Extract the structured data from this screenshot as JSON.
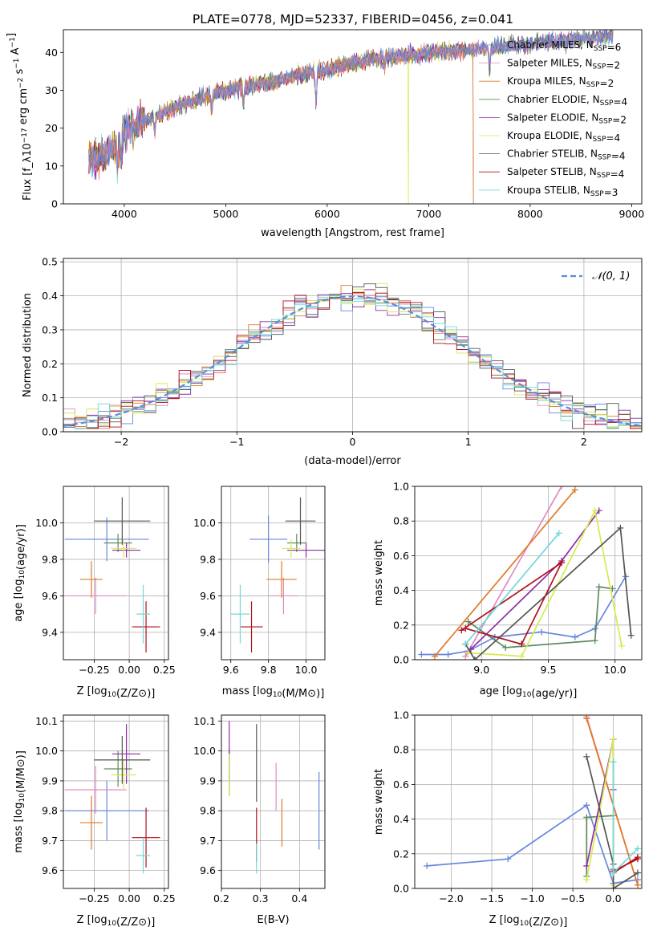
{
  "title": "PLATE=0778, MJD=52337, FIBERID=0456, z=0.041",
  "colors": {
    "Chabrier MILES": "#6688dd",
    "Salpeter MILES": "#e08ac0",
    "Kroupa MILES": "#e07a25",
    "Chabrier ELODIE": "#5e8a5e",
    "Salpeter ELODIE": "#8e2fa5",
    "Kroupa ELODIE": "#d6ea50",
    "Chabrier STELIB": "#555555",
    "Salpeter STELIB": "#b0101a",
    "Kroupa STELIB": "#70d8d8"
  },
  "chart_data": [
    {
      "id": "spectrum",
      "type": "line",
      "xlabel": "wavelength [Angstrom, rest frame]",
      "ylabel": "Flux [f_λ10^-17 erg cm^-2 s^-1 A^-1]",
      "xlim": [
        3400,
        9100
      ],
      "ylim": [
        0,
        46
      ],
      "xticks": [
        4000,
        5000,
        6000,
        7000,
        8000,
        9000
      ],
      "yticks": [
        0,
        10,
        20,
        30,
        40
      ],
      "grid": false,
      "legend_position": "top-right",
      "continuum": {
        "x": [
          3650,
          3700,
          3800,
          3900,
          4000,
          4100,
          4300,
          4500,
          4700,
          4900,
          5100,
          5300,
          5500,
          5700,
          5900,
          6100,
          6300,
          6500,
          6700,
          6900,
          7100,
          7300,
          7500,
          7700,
          7900,
          8100,
          8300,
          8500,
          8700,
          8800
        ],
        "y": [
          12,
          12,
          13,
          15,
          19,
          21,
          23,
          25.5,
          27.5,
          29,
          30.5,
          31.5,
          32.5,
          34,
          35,
          36,
          37.5,
          38.5,
          39,
          39.5,
          40,
          40.5,
          41,
          41.5,
          42,
          42.5,
          43,
          43.5,
          44,
          44.5
        ]
      },
      "series": [
        {
          "name": "Chabrier MILES, N_SSP=6",
          "color_key": "Chabrier MILES"
        },
        {
          "name": "Salpeter MILES, N_SSP=2",
          "color_key": "Salpeter MILES"
        },
        {
          "name": "Kroupa MILES, N_SSP=2",
          "color_key": "Kroupa MILES",
          "drop_at": 7440
        },
        {
          "name": "Chabrier ELODIE, N_SSP=4",
          "color_key": "Chabrier ELODIE"
        },
        {
          "name": "Salpeter ELODIE, N_SSP=2",
          "color_key": "Salpeter ELODIE"
        },
        {
          "name": "Kroupa ELODIE, N_SSP=4",
          "color_key": "Kroupa ELODIE",
          "spike_at": 6800
        },
        {
          "name": "Chabrier STELIB, N_SSP=4",
          "color_key": "Chabrier STELIB"
        },
        {
          "name": "Salpeter STELIB, N_SSP=4",
          "color_key": "Salpeter STELIB",
          "drop_at": 7440
        },
        {
          "name": "Kroupa STELIB, N_SSP=3",
          "color_key": "Kroupa STELIB"
        }
      ]
    },
    {
      "id": "residuals",
      "type": "line",
      "xlabel": "(data-model)/error",
      "ylabel": "Normed distribution",
      "xlim": [
        -2.5,
        2.5
      ],
      "ylim": [
        0,
        0.51
      ],
      "xticks": [
        -2,
        -1,
        0,
        1,
        2
      ],
      "yticks": [
        0.0,
        0.1,
        0.2,
        0.3,
        0.4,
        0.5
      ],
      "grid": true,
      "legend": "N(0,1)",
      "legend_position": "top-right",
      "bin_width": 0.1,
      "normal_curve": {
        "mean": 0,
        "sigma": 1
      }
    },
    {
      "id": "Z_vs_age",
      "type": "scatter",
      "xlabel": "Z [log10(Z/Z⊙)]",
      "ylabel": "age  [log10(age/yr)]",
      "xlim": [
        -0.47,
        0.28
      ],
      "ylim": [
        9.25,
        10.2
      ],
      "xticks": [
        -0.25,
        0.0,
        0.25
      ],
      "yticks": [
        9.4,
        9.6,
        9.8,
        10.0
      ],
      "grid": true,
      "points": [
        {
          "key": "Chabrier MILES",
          "x": -0.16,
          "y": 9.91,
          "xerr": 0.3,
          "yerr": 0.12
        },
        {
          "key": "Salpeter MILES",
          "x": -0.24,
          "y": 9.6,
          "xerr": 0.22,
          "yerr": 0.1
        },
        {
          "key": "Kroupa MILES",
          "x": -0.27,
          "y": 9.69,
          "xerr": 0.08,
          "yerr": 0.1
        },
        {
          "key": "Chabrier ELODIE",
          "x": -0.08,
          "y": 9.89,
          "xerr": 0.1,
          "yerr": 0.05
        },
        {
          "key": "Salpeter ELODIE",
          "x": -0.02,
          "y": 9.85,
          "xerr": 0.1,
          "yerr": 0.04
        },
        {
          "key": "Kroupa ELODIE",
          "x": -0.04,
          "y": 9.86,
          "xerr": 0.09,
          "yerr": 0.05
        },
        {
          "key": "Chabrier STELIB",
          "x": -0.05,
          "y": 10.01,
          "xerr": 0.2,
          "yerr": 0.13
        },
        {
          "key": "Salpeter STELIB",
          "x": 0.12,
          "y": 9.43,
          "xerr": 0.1,
          "yerr": 0.14
        },
        {
          "key": "Kroupa STELIB",
          "x": 0.1,
          "y": 9.5,
          "xerr": 0.05,
          "yerr": 0.16
        }
      ]
    },
    {
      "id": "mass_vs_age",
      "type": "scatter",
      "xlabel": "mass [log10(M/M⊙)]",
      "ylabel": "",
      "xlim": [
        9.55,
        10.1
      ],
      "ylim": [
        9.25,
        10.2
      ],
      "xticks": [
        9.6,
        9.8,
        10.0
      ],
      "yticks": [
        9.4,
        9.6,
        9.8,
        10.0
      ],
      "grid": true,
      "points": [
        {
          "key": "Chabrier MILES",
          "x": 9.8,
          "y": 9.91,
          "xerr": 0.1,
          "yerr": 0.13
        },
        {
          "key": "Salpeter MILES",
          "x": 9.88,
          "y": 9.6,
          "xerr": 0.08,
          "yerr": 0.1
        },
        {
          "key": "Kroupa MILES",
          "x": 9.87,
          "y": 9.69,
          "xerr": 0.08,
          "yerr": 0.1
        },
        {
          "key": "Chabrier ELODIE",
          "x": 9.95,
          "y": 9.89,
          "xerr": 0.05,
          "yerr": 0.05
        },
        {
          "key": "Salpeter ELODIE",
          "x": 10.0,
          "y": 9.85,
          "xerr": 0.1,
          "yerr": 0.04
        },
        {
          "key": "Kroupa ELODIE",
          "x": 9.92,
          "y": 9.86,
          "xerr": 0.05,
          "yerr": 0.05
        },
        {
          "key": "Chabrier STELIB",
          "x": 9.97,
          "y": 10.01,
          "xerr": 0.08,
          "yerr": 0.13
        },
        {
          "key": "Salpeter STELIB",
          "x": 9.71,
          "y": 9.43,
          "xerr": 0.06,
          "yerr": 0.14
        },
        {
          "key": "Kroupa STELIB",
          "x": 9.65,
          "y": 9.5,
          "xerr": 0.05,
          "yerr": 0.16
        }
      ]
    },
    {
      "id": "age_vs_weight",
      "type": "line",
      "xlabel": "age  [log10(age/yr)]",
      "ylabel": "mass weight",
      "xlim": [
        8.5,
        10.2
      ],
      "ylim": [
        0,
        1
      ],
      "xticks": [
        9.0,
        9.5,
        10.0
      ],
      "yticks": [
        0.0,
        0.2,
        0.4,
        0.6,
        0.8,
        1.0
      ],
      "grid": true,
      "series": [
        {
          "key": "Chabrier MILES",
          "x": [
            8.55,
            8.75,
            8.9,
            9.1,
            9.45,
            9.7,
            9.85,
            10.08
          ],
          "y": [
            0.03,
            0.03,
            0.05,
            0.13,
            0.16,
            0.13,
            0.18,
            0.48
          ]
        },
        {
          "key": "Salpeter MILES",
          "x": [
            8.88,
            9.6
          ],
          "y": [
            0.02,
            1.0
          ]
        },
        {
          "key": "Kroupa MILES",
          "x": [
            8.65,
            9.7
          ],
          "y": [
            0.02,
            0.98
          ]
        },
        {
          "key": "Chabrier ELODIE",
          "x": [
            8.9,
            9.18,
            9.85,
            9.88,
            9.98
          ],
          "y": [
            0.22,
            0.07,
            0.11,
            0.42,
            0.41
          ]
        },
        {
          "key": "Salpeter ELODIE",
          "x": [
            8.92,
            9.6,
            9.88
          ],
          "y": [
            0.06,
            0.57,
            0.86
          ]
        },
        {
          "key": "Kroupa ELODIE",
          "x": [
            8.9,
            9.3,
            9.85,
            10.05
          ],
          "y": [
            0.04,
            0.02,
            0.86,
            0.08
          ]
        },
        {
          "key": "Chabrier STELIB",
          "x": [
            8.88,
            8.95,
            10.04,
            10.12
          ],
          "y": [
            0.09,
            0.0,
            0.76,
            0.14
          ]
        },
        {
          "key": "Salpeter STELIB",
          "x": [
            8.88,
            9.3,
            9.6,
            8.85
          ],
          "y": [
            0.18,
            0.09,
            0.56,
            0.17
          ]
        },
        {
          "key": "Kroupa STELIB",
          "x": [
            8.88,
            9.58
          ],
          "y": [
            0.09,
            0.73
          ]
        }
      ]
    },
    {
      "id": "Z_vs_mass",
      "type": "scatter",
      "xlabel": "Z [log10(Z/Z⊙)]",
      "ylabel": "mass [log10(M/M⊙)]",
      "xlim": [
        -0.47,
        0.28
      ],
      "ylim": [
        9.54,
        10.12
      ],
      "xticks": [
        -0.25,
        0.0,
        0.25
      ],
      "yticks": [
        9.6,
        9.7,
        9.8,
        9.9,
        10.0,
        10.1
      ],
      "grid": true,
      "points": [
        {
          "key": "Chabrier MILES",
          "x": -0.16,
          "y": 9.8,
          "xerr": 0.3,
          "yerr": 0.1
        },
        {
          "key": "Salpeter MILES",
          "x": -0.24,
          "y": 9.87,
          "xerr": 0.22,
          "yerr": 0.08
        },
        {
          "key": "Kroupa MILES",
          "x": -0.27,
          "y": 9.76,
          "xerr": 0.08,
          "yerr": 0.09
        },
        {
          "key": "Chabrier ELODIE",
          "x": -0.08,
          "y": 9.94,
          "xerr": 0.1,
          "yerr": 0.06
        },
        {
          "key": "Salpeter ELODIE",
          "x": -0.02,
          "y": 9.99,
          "xerr": 0.1,
          "yerr": 0.1
        },
        {
          "key": "Kroupa ELODIE",
          "x": -0.04,
          "y": 9.92,
          "xerr": 0.09,
          "yerr": 0.05
        },
        {
          "key": "Chabrier STELIB",
          "x": -0.05,
          "y": 9.97,
          "xerr": 0.2,
          "yerr": 0.08
        },
        {
          "key": "Salpeter STELIB",
          "x": 0.12,
          "y": 9.71,
          "xerr": 0.1,
          "yerr": 0.1
        },
        {
          "key": "Kroupa STELIB",
          "x": 0.1,
          "y": 9.65,
          "xerr": 0.05,
          "yerr": 0.06
        }
      ]
    },
    {
      "id": "EBV_vs_mass",
      "type": "scatter",
      "xlabel": "E(B-V)",
      "ylabel": "",
      "xlim": [
        0.2,
        0.465
      ],
      "ylim": [
        9.54,
        10.12
      ],
      "xticks": [
        0.2,
        0.3,
        0.4
      ],
      "yticks": [
        9.6,
        9.7,
        9.8,
        9.9,
        10.0,
        10.1
      ],
      "grid": true,
      "points": [
        {
          "key": "Chabrier MILES",
          "x": 0.45,
          "y": 9.8,
          "yerr": 0.13
        },
        {
          "key": "Salpeter MILES",
          "x": 0.34,
          "y": 9.88,
          "yerr": 0.08
        },
        {
          "key": "Kroupa MILES",
          "x": 0.355,
          "y": 9.76,
          "yerr": 0.08
        },
        {
          "key": "Chabrier ELODIE",
          "x": 0.22,
          "y": 9.93,
          "yerr": 0.08
        },
        {
          "key": "Salpeter ELODIE",
          "x": 0.22,
          "y": 10.0,
          "yerr": 0.1
        },
        {
          "key": "Kroupa ELODIE",
          "x": 0.22,
          "y": 9.92,
          "yerr": 0.07
        },
        {
          "key": "Chabrier STELIB",
          "x": 0.29,
          "y": 9.96,
          "yerr": 0.13
        },
        {
          "key": "Salpeter STELIB",
          "x": 0.29,
          "y": 9.72,
          "yerr": 0.09
        },
        {
          "key": "Kroupa STELIB",
          "x": 0.29,
          "y": 9.64,
          "yerr": 0.05
        }
      ]
    },
    {
      "id": "Z_vs_weight",
      "type": "line",
      "xlabel": "Z [log10(Z/Z⊙)]",
      "ylabel": "mass weight",
      "xlim": [
        -2.45,
        0.35
      ],
      "ylim": [
        0,
        1
      ],
      "xticks": [
        -2.0,
        -1.5,
        -1.0,
        -0.5,
        0.0
      ],
      "yticks": [
        0.0,
        0.2,
        0.4,
        0.6,
        0.8,
        1.0
      ],
      "grid": true,
      "series": [
        {
          "key": "Chabrier MILES",
          "x": [
            -2.3,
            -1.3,
            -0.33,
            0.0,
            0.3
          ],
          "y": [
            0.13,
            0.17,
            0.48,
            0.03,
            0.05
          ]
        },
        {
          "key": "Salpeter MILES",
          "x": [
            -0.33,
            0.3
          ],
          "y": [
            0.99,
            0.02
          ]
        },
        {
          "key": "Kroupa MILES",
          "x": [
            -0.33,
            0.3
          ],
          "y": [
            0.98,
            0.02
          ]
        },
        {
          "key": "Chabrier ELODIE",
          "x": [
            -0.33,
            -0.33,
            0.0,
            0.0
          ],
          "y": [
            0.07,
            0.41,
            0.42,
            0.11
          ]
        },
        {
          "key": "Salpeter ELODIE",
          "x": [
            -0.33,
            0.0,
            0.0
          ],
          "y": [
            0.13,
            0.86,
            0.57
          ]
        },
        {
          "key": "Kroupa ELODIE",
          "x": [
            -0.33,
            0.0,
            0.0
          ],
          "y": [
            0.05,
            0.86,
            0.02
          ]
        },
        {
          "key": "Chabrier STELIB",
          "x": [
            -0.33,
            0.0,
            0.0,
            0.3
          ],
          "y": [
            0.76,
            0.14,
            0.0,
            0.09
          ]
        },
        {
          "key": "Salpeter STELIB",
          "x": [
            0.0,
            0.3,
            0.3,
            0.0
          ],
          "y": [
            0.1,
            0.17,
            0.18,
            0.09
          ]
        },
        {
          "key": "Kroupa STELIB",
          "x": [
            0.0,
            0.0,
            0.3
          ],
          "y": [
            0.73,
            0.09,
            0.23
          ]
        }
      ]
    }
  ]
}
